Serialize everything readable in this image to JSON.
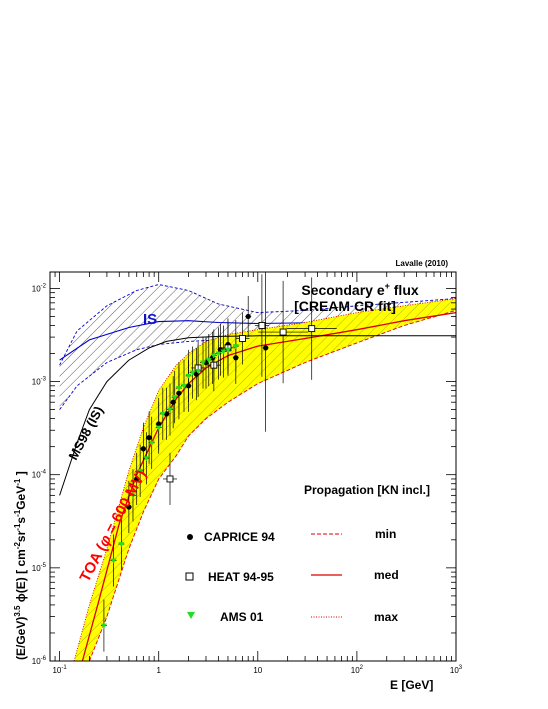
{
  "header": {
    "credit": "Lavalle (2010)"
  },
  "title": {
    "line1_main": "Secondary e",
    "line1_sup": "+",
    "line1_end": " flux",
    "line2": "[CREAM CR fit]"
  },
  "annotations": {
    "is_label": "IS",
    "ms98_label": "MS98 (IS)",
    "toa_prefix": "TOA (",
    "toa_phi": "φ",
    "toa_suffix": " = 600 MV)"
  },
  "legend": {
    "propagation_title": "Propagation [KN incl.]",
    "caprice": "CAPRICE 94",
    "heat": "HEAT 94-95",
    "ams": "AMS 01",
    "min": "min",
    "med": "med",
    "max": "max"
  },
  "axes": {
    "xlabel": "E [GeV]",
    "ylabel": "(E/GeV)^3.5 ϕ(E)  [ cm^-2 sr^-1 s^-1 GeV^-1 ]",
    "x_ticks": [
      "10^-1",
      "1",
      "10",
      "10^2",
      "10^3"
    ],
    "y_ticks": [
      "10^-6",
      "10^-5",
      "10^-4",
      "10^-3",
      "10^-2"
    ]
  },
  "colors": {
    "band_fill": "#ffff00",
    "toa_line": "#dd0000",
    "is_line": "#0000cc",
    "ams_marker": "#22dd22",
    "ms98_line": "#000000",
    "toa_text": "#ff0000",
    "is_text": "#1111cc"
  },
  "chart_data": {
    "type": "scatter",
    "xscale": "log",
    "yscale": "log",
    "xlim": [
      0.08,
      1000
    ],
    "ylim": [
      1e-06,
      0.015
    ],
    "series": [
      {
        "name": "CAPRICE 94",
        "marker": "filled-circle",
        "x": [
          0.5,
          0.6,
          0.7,
          0.8,
          1.0,
          1.2,
          1.4,
          1.6,
          2.0,
          2.4,
          3.0,
          3.5,
          4.2,
          5.0,
          6.0,
          8.0,
          12.0
        ],
        "y": [
          4.5e-05,
          9e-05,
          0.00019,
          0.00025,
          0.00035,
          0.00045,
          0.0006,
          0.00075,
          0.0009,
          0.0012,
          0.0016,
          0.0018,
          0.0022,
          0.0025,
          0.0018,
          0.005,
          0.0023
        ]
      },
      {
        "name": "HEAT 94-95",
        "marker": "open-square",
        "x": [
          1.3,
          2.5,
          3.6,
          5.0,
          7.0,
          11.0,
          18.0,
          35.0
        ],
        "y": [
          9e-05,
          0.0014,
          0.0015,
          0.0023,
          0.0029,
          0.004,
          0.0034,
          0.0037
        ]
      },
      {
        "name": "AMS 01",
        "marker": "green-triangle",
        "x": [
          0.28,
          0.35,
          0.42,
          0.55,
          0.65,
          0.75,
          0.85,
          1.0,
          1.1,
          1.3,
          1.45,
          1.6,
          1.8,
          2.0,
          2.2,
          2.5,
          2.8,
          3.2,
          3.6,
          4.0,
          4.5,
          5.0,
          6.0
        ],
        "y": [
          2.4e-06,
          1.2e-05,
          1.8e-05,
          6e-05,
          0.00011,
          0.00015,
          0.00022,
          0.00032,
          0.00045,
          0.0005,
          0.00068,
          0.00085,
          0.0009,
          0.00115,
          0.00125,
          0.0013,
          0.0016,
          0.0017,
          0.0019,
          0.002,
          0.0021,
          0.0022,
          0.0024
        ]
      }
    ]
  }
}
